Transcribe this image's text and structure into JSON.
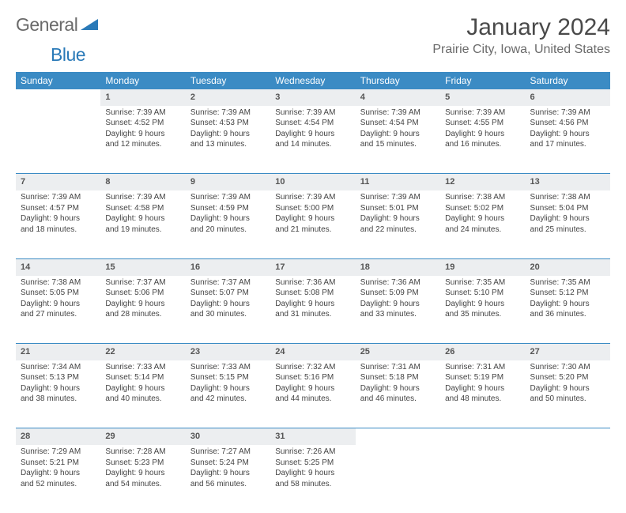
{
  "logo": {
    "text_a": "General",
    "text_b": "Blue"
  },
  "title": "January 2024",
  "location": "Prairie City, Iowa, United States",
  "colors": {
    "header_bg": "#3b8bc4",
    "header_text": "#ffffff",
    "daynum_bg": "#eceef0",
    "row_border": "#3b8bc4",
    "body_text": "#444444",
    "title_text": "#4a4a4a",
    "location_text": "#6a6a6a",
    "logo_gray": "#6a6a6a",
    "logo_blue": "#2a7ab8",
    "page_bg": "#ffffff"
  },
  "typography": {
    "title_fontsize": 30,
    "location_fontsize": 16,
    "th_fontsize": 12,
    "daynum_fontsize": 11,
    "cell_fontsize": 10
  },
  "day_headers": [
    "Sunday",
    "Monday",
    "Tuesday",
    "Wednesday",
    "Thursday",
    "Friday",
    "Saturday"
  ],
  "weeks": [
    [
      {
        "n": "",
        "lines": []
      },
      {
        "n": "1",
        "lines": [
          "Sunrise: 7:39 AM",
          "Sunset: 4:52 PM",
          "Daylight: 9 hours",
          "and 12 minutes."
        ]
      },
      {
        "n": "2",
        "lines": [
          "Sunrise: 7:39 AM",
          "Sunset: 4:53 PM",
          "Daylight: 9 hours",
          "and 13 minutes."
        ]
      },
      {
        "n": "3",
        "lines": [
          "Sunrise: 7:39 AM",
          "Sunset: 4:54 PM",
          "Daylight: 9 hours",
          "and 14 minutes."
        ]
      },
      {
        "n": "4",
        "lines": [
          "Sunrise: 7:39 AM",
          "Sunset: 4:54 PM",
          "Daylight: 9 hours",
          "and 15 minutes."
        ]
      },
      {
        "n": "5",
        "lines": [
          "Sunrise: 7:39 AM",
          "Sunset: 4:55 PM",
          "Daylight: 9 hours",
          "and 16 minutes."
        ]
      },
      {
        "n": "6",
        "lines": [
          "Sunrise: 7:39 AM",
          "Sunset: 4:56 PM",
          "Daylight: 9 hours",
          "and 17 minutes."
        ]
      }
    ],
    [
      {
        "n": "7",
        "lines": [
          "Sunrise: 7:39 AM",
          "Sunset: 4:57 PM",
          "Daylight: 9 hours",
          "and 18 minutes."
        ]
      },
      {
        "n": "8",
        "lines": [
          "Sunrise: 7:39 AM",
          "Sunset: 4:58 PM",
          "Daylight: 9 hours",
          "and 19 minutes."
        ]
      },
      {
        "n": "9",
        "lines": [
          "Sunrise: 7:39 AM",
          "Sunset: 4:59 PM",
          "Daylight: 9 hours",
          "and 20 minutes."
        ]
      },
      {
        "n": "10",
        "lines": [
          "Sunrise: 7:39 AM",
          "Sunset: 5:00 PM",
          "Daylight: 9 hours",
          "and 21 minutes."
        ]
      },
      {
        "n": "11",
        "lines": [
          "Sunrise: 7:39 AM",
          "Sunset: 5:01 PM",
          "Daylight: 9 hours",
          "and 22 minutes."
        ]
      },
      {
        "n": "12",
        "lines": [
          "Sunrise: 7:38 AM",
          "Sunset: 5:02 PM",
          "Daylight: 9 hours",
          "and 24 minutes."
        ]
      },
      {
        "n": "13",
        "lines": [
          "Sunrise: 7:38 AM",
          "Sunset: 5:04 PM",
          "Daylight: 9 hours",
          "and 25 minutes."
        ]
      }
    ],
    [
      {
        "n": "14",
        "lines": [
          "Sunrise: 7:38 AM",
          "Sunset: 5:05 PM",
          "Daylight: 9 hours",
          "and 27 minutes."
        ]
      },
      {
        "n": "15",
        "lines": [
          "Sunrise: 7:37 AM",
          "Sunset: 5:06 PM",
          "Daylight: 9 hours",
          "and 28 minutes."
        ]
      },
      {
        "n": "16",
        "lines": [
          "Sunrise: 7:37 AM",
          "Sunset: 5:07 PM",
          "Daylight: 9 hours",
          "and 30 minutes."
        ]
      },
      {
        "n": "17",
        "lines": [
          "Sunrise: 7:36 AM",
          "Sunset: 5:08 PM",
          "Daylight: 9 hours",
          "and 31 minutes."
        ]
      },
      {
        "n": "18",
        "lines": [
          "Sunrise: 7:36 AM",
          "Sunset: 5:09 PM",
          "Daylight: 9 hours",
          "and 33 minutes."
        ]
      },
      {
        "n": "19",
        "lines": [
          "Sunrise: 7:35 AM",
          "Sunset: 5:10 PM",
          "Daylight: 9 hours",
          "and 35 minutes."
        ]
      },
      {
        "n": "20",
        "lines": [
          "Sunrise: 7:35 AM",
          "Sunset: 5:12 PM",
          "Daylight: 9 hours",
          "and 36 minutes."
        ]
      }
    ],
    [
      {
        "n": "21",
        "lines": [
          "Sunrise: 7:34 AM",
          "Sunset: 5:13 PM",
          "Daylight: 9 hours",
          "and 38 minutes."
        ]
      },
      {
        "n": "22",
        "lines": [
          "Sunrise: 7:33 AM",
          "Sunset: 5:14 PM",
          "Daylight: 9 hours",
          "and 40 minutes."
        ]
      },
      {
        "n": "23",
        "lines": [
          "Sunrise: 7:33 AM",
          "Sunset: 5:15 PM",
          "Daylight: 9 hours",
          "and 42 minutes."
        ]
      },
      {
        "n": "24",
        "lines": [
          "Sunrise: 7:32 AM",
          "Sunset: 5:16 PM",
          "Daylight: 9 hours",
          "and 44 minutes."
        ]
      },
      {
        "n": "25",
        "lines": [
          "Sunrise: 7:31 AM",
          "Sunset: 5:18 PM",
          "Daylight: 9 hours",
          "and 46 minutes."
        ]
      },
      {
        "n": "26",
        "lines": [
          "Sunrise: 7:31 AM",
          "Sunset: 5:19 PM",
          "Daylight: 9 hours",
          "and 48 minutes."
        ]
      },
      {
        "n": "27",
        "lines": [
          "Sunrise: 7:30 AM",
          "Sunset: 5:20 PM",
          "Daylight: 9 hours",
          "and 50 minutes."
        ]
      }
    ],
    [
      {
        "n": "28",
        "lines": [
          "Sunrise: 7:29 AM",
          "Sunset: 5:21 PM",
          "Daylight: 9 hours",
          "and 52 minutes."
        ]
      },
      {
        "n": "29",
        "lines": [
          "Sunrise: 7:28 AM",
          "Sunset: 5:23 PM",
          "Daylight: 9 hours",
          "and 54 minutes."
        ]
      },
      {
        "n": "30",
        "lines": [
          "Sunrise: 7:27 AM",
          "Sunset: 5:24 PM",
          "Daylight: 9 hours",
          "and 56 minutes."
        ]
      },
      {
        "n": "31",
        "lines": [
          "Sunrise: 7:26 AM",
          "Sunset: 5:25 PM",
          "Daylight: 9 hours",
          "and 58 minutes."
        ]
      },
      {
        "n": "",
        "lines": []
      },
      {
        "n": "",
        "lines": []
      },
      {
        "n": "",
        "lines": []
      }
    ]
  ]
}
